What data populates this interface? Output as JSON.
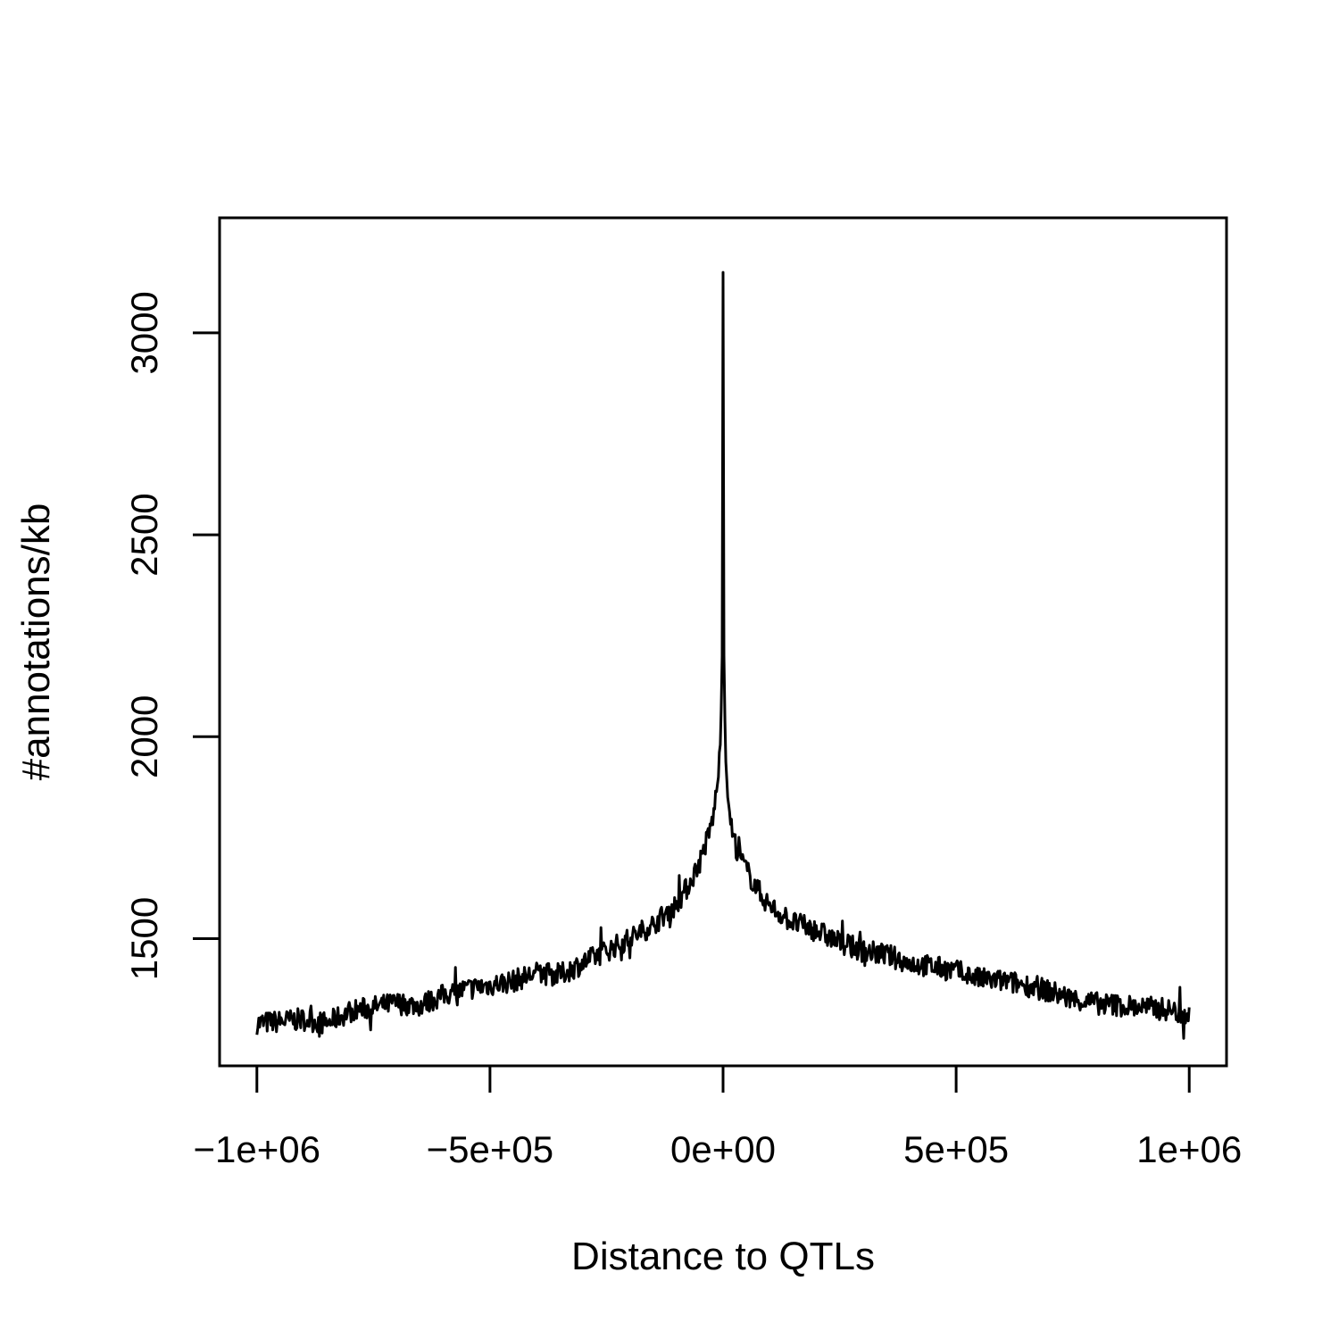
{
  "chart_data": {
    "type": "line",
    "title": "",
    "xlabel": "Distance to QTLs",
    "ylabel": "#annotations/kb",
    "xlim": [
      -1080000,
      1080000
    ],
    "ylim": [
      1185,
      3285
    ],
    "x_ticks": [
      {
        "value": -1000000,
        "label": "−1e+06"
      },
      {
        "value": -500000,
        "label": "−5e+05"
      },
      {
        "value": 0,
        "label": "0e+00"
      },
      {
        "value": 500000,
        "label": "5e+05"
      },
      {
        "value": 1000000,
        "label": "1e+06"
      }
    ],
    "y_ticks": [
      {
        "value": 1500,
        "label": "1500"
      },
      {
        "value": 2000,
        "label": "2000"
      },
      {
        "value": 2500,
        "label": "2500"
      },
      {
        "value": 3000,
        "label": "3000"
      }
    ],
    "grid": false,
    "legend": "none",
    "line_color": "#000000",
    "series": [
      {
        "x": [
          -1000000,
          -950000,
          -900000,
          -850000,
          -800000,
          -750000,
          -700000,
          -650000,
          -600000,
          -550000,
          -500000,
          -450000,
          -400000,
          -350000,
          -300000,
          -250000,
          -200000,
          -150000,
          -100000,
          -75000,
          -50000,
          -30000,
          -20000,
          -10000,
          -5000,
          -2000,
          0,
          2000,
          5000,
          10000,
          20000,
          30000,
          50000,
          75000,
          100000,
          150000,
          200000,
          250000,
          300000,
          350000,
          400000,
          450000,
          500000,
          550000,
          600000,
          650000,
          700000,
          750000,
          800000,
          850000,
          900000,
          950000,
          1000000
        ],
        "y": [
          1290,
          1295,
          1300,
          1290,
          1320,
          1330,
          1340,
          1335,
          1360,
          1375,
          1385,
          1395,
          1415,
          1410,
          1440,
          1470,
          1500,
          1535,
          1585,
          1630,
          1690,
          1760,
          1810,
          1900,
          2000,
          2200,
          3150,
          2200,
          1960,
          1850,
          1760,
          1720,
          1670,
          1620,
          1580,
          1540,
          1520,
          1490,
          1470,
          1460,
          1440,
          1430,
          1420,
          1400,
          1395,
          1385,
          1370,
          1350,
          1340,
          1335,
          1330,
          1325,
          1310
        ]
      }
    ]
  }
}
